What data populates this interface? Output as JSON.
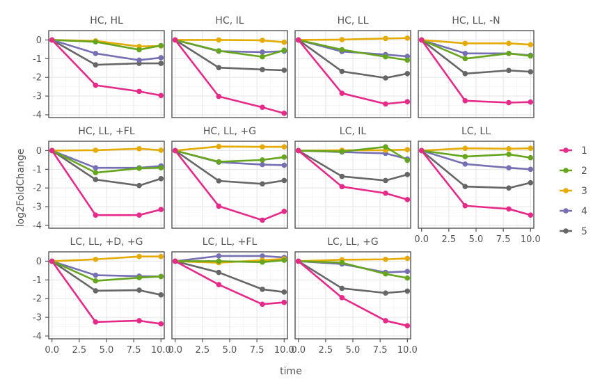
{
  "chart_data": {
    "type": "line",
    "xlabel": "time",
    "ylabel": "log2FoldChange",
    "xlim": [
      -0.3,
      10.3
    ],
    "ylim": [
      -4.15,
      0.5
    ],
    "xticks": [
      0.0,
      2.5,
      5.0,
      7.5,
      10.0
    ],
    "xtick_labels": [
      "0.0",
      "2.5",
      "5.0",
      "7.5",
      "10.0"
    ],
    "yticks": [
      0,
      -1,
      -2,
      -3,
      -4
    ],
    "ytick_labels": [
      "0",
      "-1",
      "-2",
      "-3",
      "-4"
    ],
    "x": [
      0,
      4,
      8,
      10
    ],
    "grid": true,
    "legend_position": "right",
    "series_colors": {
      "1": "#e7298a",
      "2": "#66a61e",
      "3": "#e6ab02",
      "4": "#7570b3",
      "5": "#666666"
    },
    "legend": [
      "1",
      "2",
      "3",
      "4",
      "5"
    ],
    "panels": [
      {
        "title": "HC, HL",
        "series": [
          {
            "name": "1",
            "values": [
              0,
              -2.42,
              -2.75,
              -2.97
            ]
          },
          {
            "name": "2",
            "values": [
              0,
              -0.1,
              -0.52,
              -0.3
            ]
          },
          {
            "name": "3",
            "values": [
              0,
              -0.05,
              -0.35,
              -0.32
            ]
          },
          {
            "name": "4",
            "values": [
              0,
              -0.72,
              -1.08,
              -0.95
            ]
          },
          {
            "name": "5",
            "values": [
              0,
              -1.33,
              -1.25,
              -1.25
            ]
          }
        ]
      },
      {
        "title": "HC, IL",
        "series": [
          {
            "name": "1",
            "values": [
              0,
              -3.02,
              -3.6,
              -3.92
            ]
          },
          {
            "name": "2",
            "values": [
              0,
              -0.58,
              -0.9,
              -0.55
            ]
          },
          {
            "name": "3",
            "values": [
              0,
              0.0,
              -0.02,
              -0.12
            ]
          },
          {
            "name": "4",
            "values": [
              0,
              -0.6,
              -0.65,
              -0.6
            ]
          },
          {
            "name": "5",
            "values": [
              0,
              -1.48,
              -1.58,
              -1.62
            ]
          }
        ]
      },
      {
        "title": "HC, LL",
        "series": [
          {
            "name": "1",
            "values": [
              0,
              -2.85,
              -3.42,
              -3.3
            ]
          },
          {
            "name": "2",
            "values": [
              0,
              -0.52,
              -0.9,
              -1.08
            ]
          },
          {
            "name": "3",
            "values": [
              0,
              0.02,
              0.08,
              0.1
            ]
          },
          {
            "name": "4",
            "values": [
              0,
              -0.62,
              -0.78,
              -0.88
            ]
          },
          {
            "name": "5",
            "values": [
              0,
              -1.68,
              -2.03,
              -1.8
            ]
          }
        ]
      },
      {
        "title": "HC, LL, -N",
        "series": [
          {
            "name": "1",
            "values": [
              0,
              -3.25,
              -3.35,
              -3.32
            ]
          },
          {
            "name": "2",
            "values": [
              0,
              -1.0,
              -0.72,
              -0.85
            ]
          },
          {
            "name": "3",
            "values": [
              0,
              -0.18,
              -0.18,
              -0.25
            ]
          },
          {
            "name": "4",
            "values": [
              0,
              -0.72,
              -0.72,
              -0.82
            ]
          },
          {
            "name": "5",
            "values": [
              0,
              -1.8,
              -1.63,
              -1.7
            ]
          }
        ]
      },
      {
        "title": "HC, LL, +FL",
        "series": [
          {
            "name": "1",
            "values": [
              0,
              -3.45,
              -3.45,
              -3.15
            ]
          },
          {
            "name": "2",
            "values": [
              0,
              -1.18,
              -0.95,
              -0.92
            ]
          },
          {
            "name": "3",
            "values": [
              0,
              0.02,
              0.1,
              0.02
            ]
          },
          {
            "name": "4",
            "values": [
              0,
              -0.92,
              -0.92,
              -0.82
            ]
          },
          {
            "name": "5",
            "values": [
              0,
              -1.55,
              -1.87,
              -1.5
            ]
          }
        ]
      },
      {
        "title": "HC, LL, +G",
        "series": [
          {
            "name": "1",
            "values": [
              0,
              -2.97,
              -3.72,
              -3.25
            ]
          },
          {
            "name": "2",
            "values": [
              0,
              -0.6,
              -0.5,
              -0.35
            ]
          },
          {
            "name": "3",
            "values": [
              0,
              0.22,
              0.2,
              0.2
            ]
          },
          {
            "name": "4",
            "values": [
              0,
              -0.62,
              -0.75,
              -0.78
            ]
          },
          {
            "name": "5",
            "values": [
              0,
              -1.62,
              -1.78,
              -1.6
            ]
          }
        ]
      },
      {
        "title": "LC, IL",
        "series": [
          {
            "name": "1",
            "values": [
              0,
              -1.93,
              -2.28,
              -2.62
            ]
          },
          {
            "name": "2",
            "values": [
              0,
              -0.05,
              0.2,
              -0.52
            ]
          },
          {
            "name": "3",
            "values": [
              0,
              0.02,
              0.02,
              0.05
            ]
          },
          {
            "name": "4",
            "values": [
              0,
              -0.08,
              -0.15,
              -0.45
            ]
          },
          {
            "name": "5",
            "values": [
              0,
              -1.38,
              -1.6,
              -1.28
            ]
          }
        ]
      },
      {
        "title": "LC, LL",
        "series": [
          {
            "name": "1",
            "values": [
              0,
              -2.95,
              -3.12,
              -3.45
            ]
          },
          {
            "name": "2",
            "values": [
              0,
              -0.32,
              -0.2,
              -0.38
            ]
          },
          {
            "name": "3",
            "values": [
              0,
              0.12,
              0.1,
              0.12
            ]
          },
          {
            "name": "4",
            "values": [
              0,
              -0.72,
              -0.92,
              -1.0
            ]
          },
          {
            "name": "5",
            "values": [
              0,
              -1.92,
              -2.0,
              -1.72
            ]
          }
        ]
      },
      {
        "title": "LC, LL, +D, +G",
        "series": [
          {
            "name": "1",
            "values": [
              0,
              -3.25,
              -3.18,
              -3.35
            ]
          },
          {
            "name": "2",
            "values": [
              0,
              -1.05,
              -0.88,
              -0.82
            ]
          },
          {
            "name": "3",
            "values": [
              0,
              0.1,
              0.25,
              0.25
            ]
          },
          {
            "name": "4",
            "values": [
              0,
              -0.75,
              -0.8,
              -0.82
            ]
          },
          {
            "name": "5",
            "values": [
              0,
              -1.58,
              -1.55,
              -1.8
            ]
          }
        ]
      },
      {
        "title": "LC, LL, +FL",
        "series": [
          {
            "name": "1",
            "values": [
              0,
              -1.25,
              -2.3,
              -2.2
            ]
          },
          {
            "name": "2",
            "values": [
              0,
              0.0,
              -0.05,
              0.05
            ]
          },
          {
            "name": "3",
            "values": [
              0,
              -0.08,
              0.05,
              0.12
            ]
          },
          {
            "name": "4",
            "values": [
              0,
              0.28,
              0.28,
              0.2
            ]
          },
          {
            "name": "5",
            "values": [
              0,
              -0.6,
              -1.5,
              -1.65
            ]
          }
        ]
      },
      {
        "title": "LC, LL, +G",
        "series": [
          {
            "name": "1",
            "values": [
              0,
              -1.95,
              -3.18,
              -3.45
            ]
          },
          {
            "name": "2",
            "values": [
              0,
              -0.08,
              -0.68,
              -0.9
            ]
          },
          {
            "name": "3",
            "values": [
              0,
              0.08,
              0.1,
              0.15
            ]
          },
          {
            "name": "4",
            "values": [
              0,
              -0.15,
              -0.6,
              -0.55
            ]
          },
          {
            "name": "5",
            "values": [
              0,
              -1.45,
              -1.7,
              -1.6
            ]
          }
        ]
      }
    ]
  }
}
